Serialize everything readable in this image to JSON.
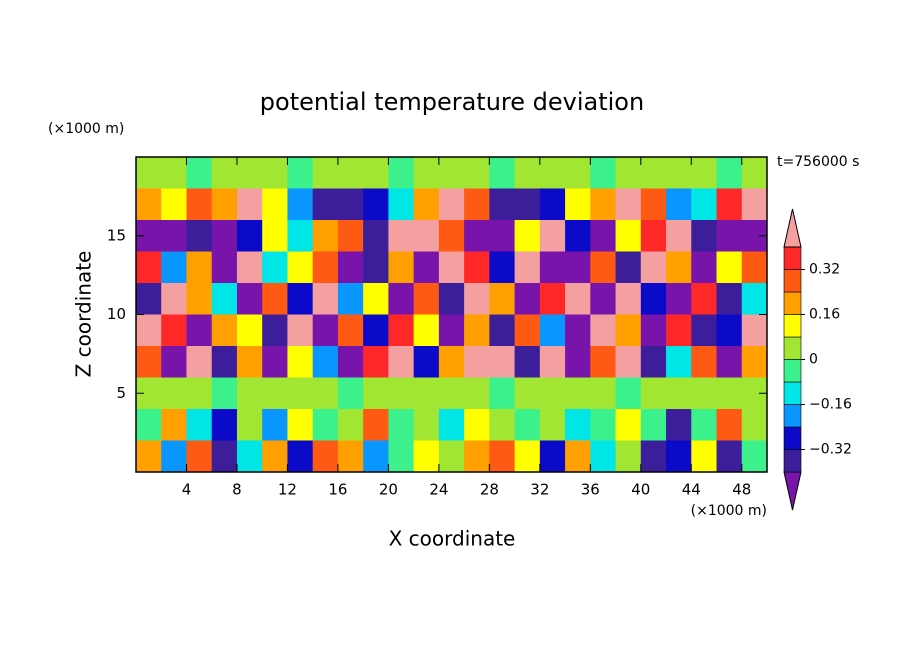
{
  "chart_data": {
    "type": "contour",
    "title": "potential temperature deviation",
    "x_label": "X coordinate",
    "y_label": "Z coordinate",
    "x_unit": "(×1000 m)",
    "y_unit": "(×1000 m)",
    "annotation": "t=756000 s",
    "xlim": [
      0,
      50
    ],
    "ylim": [
      0,
      20
    ],
    "xticks": [
      4,
      8,
      12,
      16,
      20,
      24,
      28,
      32,
      36,
      40,
      44,
      48
    ],
    "yticks": [
      5,
      10,
      15
    ],
    "x": [
      1,
      3,
      5,
      7,
      9,
      11,
      13,
      15,
      17,
      19,
      21,
      23,
      25,
      27,
      29,
      31,
      33,
      35,
      37,
      39,
      41,
      43,
      45,
      47,
      49
    ],
    "y": [
      19,
      17,
      15,
      13,
      11,
      9,
      7,
      5,
      3,
      1
    ],
    "z": [
      [
        0.04,
        0.04,
        -0.04,
        0.04,
        0.04,
        0.04,
        -0.04,
        0.04,
        0.04,
        0.04,
        -0.04,
        0.04,
        0.04,
        0.04,
        -0.04,
        0.04,
        0.04,
        0.04,
        -0.04,
        0.04,
        0.04,
        0.04,
        0.04,
        -0.04,
        0.04
      ],
      [
        0.2,
        0.12,
        0.28,
        0.2,
        0.44,
        0.12,
        -0.2,
        -0.36,
        -0.36,
        -0.28,
        -0.12,
        0.2,
        0.44,
        0.28,
        -0.36,
        -0.36,
        -0.28,
        0.12,
        0.2,
        0.44,
        0.28,
        -0.2,
        -0.12,
        0.36,
        0.44
      ],
      [
        -0.44,
        -0.44,
        -0.36,
        -0.44,
        -0.28,
        0.12,
        -0.12,
        0.2,
        0.28,
        -0.36,
        0.44,
        0.44,
        0.28,
        -0.44,
        -0.44,
        0.12,
        0.44,
        -0.28,
        -0.44,
        0.12,
        0.36,
        0.44,
        -0.36,
        -0.44,
        -0.44
      ],
      [
        0.36,
        -0.2,
        0.2,
        -0.44,
        0.44,
        -0.12,
        0.12,
        0.28,
        -0.44,
        -0.36,
        0.2,
        -0.44,
        0.44,
        0.36,
        -0.28,
        0.44,
        -0.44,
        -0.44,
        0.28,
        -0.36,
        0.44,
        0.2,
        -0.44,
        0.12,
        0.28
      ],
      [
        -0.36,
        0.44,
        0.2,
        -0.12,
        -0.44,
        0.28,
        -0.28,
        0.44,
        -0.2,
        0.12,
        -0.44,
        0.28,
        -0.36,
        0.44,
        0.2,
        -0.44,
        0.36,
        0.44,
        -0.44,
        0.44,
        -0.28,
        -0.44,
        0.36,
        -0.36,
        -0.12
      ],
      [
        0.44,
        0.36,
        -0.44,
        0.2,
        0.12,
        -0.36,
        0.44,
        -0.44,
        0.28,
        -0.28,
        0.36,
        0.12,
        -0.44,
        0.2,
        -0.36,
        0.28,
        -0.2,
        -0.44,
        0.44,
        0.2,
        -0.44,
        0.36,
        -0.36,
        -0.28,
        0.44
      ],
      [
        0.28,
        -0.44,
        0.44,
        -0.36,
        0.2,
        -0.44,
        0.12,
        -0.2,
        -0.44,
        0.36,
        0.44,
        -0.28,
        0.2,
        0.44,
        0.44,
        -0.36,
        0.44,
        -0.44,
        0.28,
        0.44,
        -0.36,
        -0.12,
        0.28,
        -0.44,
        0.2
      ],
      [
        0.04,
        0.04,
        0.04,
        -0.04,
        0.04,
        0.04,
        0.04,
        0.04,
        -0.04,
        0.04,
        0.04,
        0.04,
        0.04,
        0.04,
        -0.04,
        0.04,
        0.04,
        0.04,
        0.04,
        -0.04,
        0.04,
        0.04,
        0.04,
        0.04,
        0.04
      ],
      [
        -0.04,
        0.2,
        -0.12,
        -0.28,
        0.04,
        -0.2,
        0.12,
        -0.04,
        0.04,
        0.28,
        -0.04,
        0.04,
        -0.12,
        0.12,
        0.04,
        -0.04,
        0.04,
        -0.12,
        -0.04,
        0.12,
        -0.04,
        -0.36,
        -0.04,
        0.28,
        0.04
      ],
      [
        0.2,
        -0.2,
        0.28,
        -0.36,
        -0.12,
        0.2,
        -0.28,
        0.28,
        0.2,
        -0.2,
        -0.04,
        0.12,
        0.04,
        0.2,
        0.28,
        0.12,
        -0.28,
        0.2,
        -0.12,
        0.04,
        -0.36,
        -0.28,
        0.12,
        -0.36,
        -0.04
      ]
    ],
    "colorbar": {
      "levels": [
        -0.4,
        -0.32,
        -0.24,
        -0.16,
        -0.08,
        0,
        0.08,
        0.16,
        0.24,
        0.32,
        0.4
      ],
      "colors": [
        "#7814aa",
        "#3c1e9b",
        "#0a0ac8",
        "#0a96ff",
        "#00e6e6",
        "#3cf08c",
        "#a0e632",
        "#ffff00",
        "#ffa000",
        "#ff5a14",
        "#ff2828",
        "#f5a0a0"
      ],
      "ticks": [
        {
          "value": -0.32,
          "label": "−0.32"
        },
        {
          "value": -0.16,
          "label": "−0.16"
        },
        0,
        0.16,
        0.32
      ]
    }
  }
}
